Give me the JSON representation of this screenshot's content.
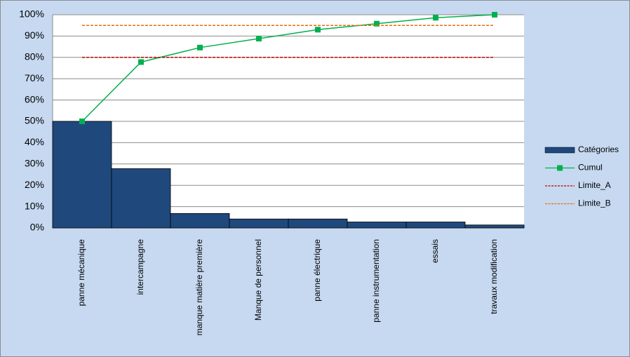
{
  "chart_data": {
    "type": "bar",
    "categories": [
      "panne mécanique",
      "intercampagne",
      "manque matière première",
      "Manque de personnel",
      "panne électrique",
      "panne instrumentation",
      "essais",
      "travaux modification"
    ],
    "series": [
      {
        "name": "Catégories",
        "type": "bar",
        "color": "#1f497d",
        "values": [
          50,
          27.8,
          6.8,
          4.2,
          4.2,
          2.8,
          2.8,
          1.4
        ]
      },
      {
        "name": "Cumul",
        "type": "line",
        "color": "#00b050",
        "marker": "square",
        "values": [
          50,
          77.8,
          84.6,
          88.8,
          93,
          95.8,
          98.6,
          100
        ]
      },
      {
        "name": "Limite_A",
        "type": "line",
        "color": "#c00000",
        "dashed": true,
        "values": [
          80,
          80,
          80,
          80,
          80,
          80,
          80,
          80
        ]
      },
      {
        "name": "Limite_B",
        "type": "line",
        "color": "#e46c0a",
        "dashed": true,
        "values": [
          95,
          95,
          95,
          95,
          95,
          95,
          95,
          95
        ]
      }
    ],
    "ylim": [
      0,
      100
    ],
    "yticks": [
      {
        "value": 0,
        "label": "0%"
      },
      {
        "value": 10,
        "label": "10%"
      },
      {
        "value": 20,
        "label": "20%"
      },
      {
        "value": 30,
        "label": "30%"
      },
      {
        "value": 40,
        "label": "40%"
      },
      {
        "value": 50,
        "label": "50%"
      },
      {
        "value": 60,
        "label": "60%"
      },
      {
        "value": 70,
        "label": "70%"
      },
      {
        "value": 80,
        "label": "80%"
      },
      {
        "value": 90,
        "label": "90%"
      },
      {
        "value": 100,
        "label": "100%"
      }
    ],
    "grid": true,
    "legend": "right"
  }
}
